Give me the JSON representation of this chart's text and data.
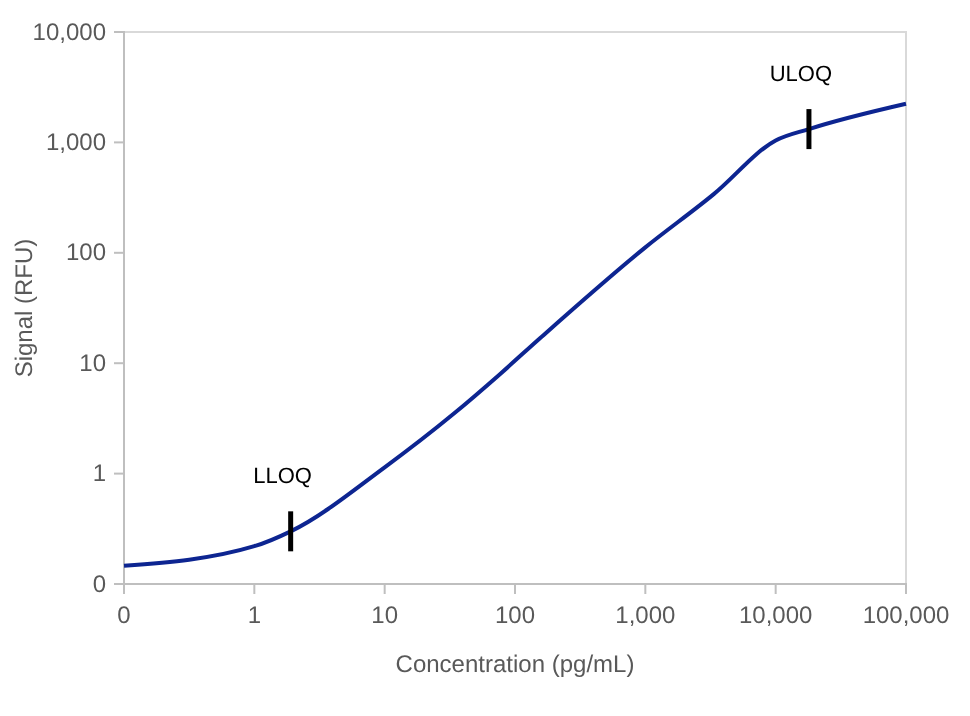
{
  "chart_data": {
    "type": "line",
    "xlabel": "Concentration (pg/mL)",
    "ylabel": "Signal (RFU)",
    "log": "xy",
    "xlim": [
      0.1,
      100000
    ],
    "ylim": [
      0.1,
      10000
    ],
    "xticks": [
      {
        "value": 0.1,
        "label": "0"
      },
      1,
      10,
      100,
      {
        "value": 1000,
        "label": "1,000"
      },
      {
        "value": 10000,
        "label": "10,000"
      },
      {
        "value": 100000,
        "label": "100,000"
      }
    ],
    "yticks": [
      {
        "value": 0.1,
        "label": "0"
      },
      1,
      10,
      100,
      {
        "value": 1000,
        "label": "1,000"
      },
      {
        "value": 10000,
        "label": "10,000"
      }
    ],
    "grid": false,
    "marker": "none",
    "line_style": "solid",
    "series": [
      {
        "color": "#0d2591",
        "x": [
          0.1,
          1,
          1.9,
          10,
          34,
          77,
          157,
          1000,
          3350,
          10000,
          18000,
          100000
        ],
        "values": [
          0.146,
          0.22,
          0.3,
          1.14,
          3.5,
          8,
          17,
          112,
          340,
          1040,
          1320,
          2240
        ]
      }
    ],
    "annotations": [
      {
        "text": "LLOQ",
        "x": 1.9,
        "y": 0.3
      },
      {
        "text": "ULOQ",
        "x": 18000,
        "y": 1320
      }
    ]
  }
}
